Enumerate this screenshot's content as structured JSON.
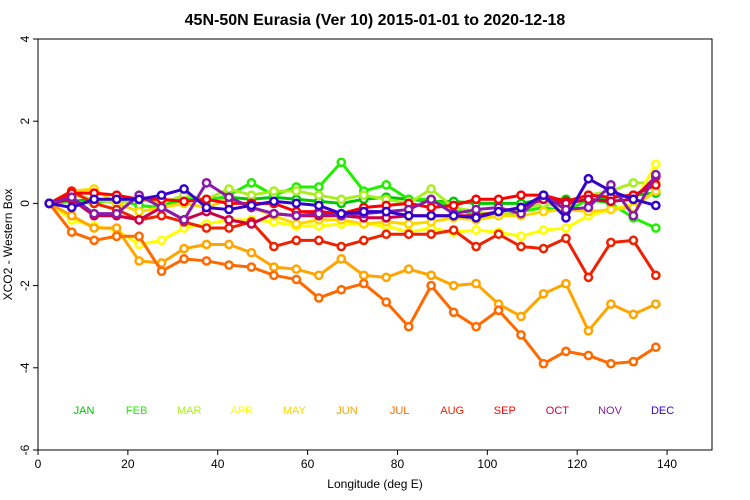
{
  "chart_data": {
    "type": "line",
    "title": "45N-50N Eurasia (Ver 10)   2015-01-01 to 2020-12-18",
    "xlabel": "Longitude (deg E)",
    "ylabel": "XCO2 - Western Box",
    "xlim": [
      0,
      150
    ],
    "ylim": [
      -6,
      4
    ],
    "x_ticks": [
      0,
      20,
      40,
      60,
      80,
      100,
      120,
      140
    ],
    "y_ticks": [
      -6,
      -4,
      -2,
      0,
      2,
      4
    ],
    "grid": false,
    "legend_position": "bottom-inside",
    "x": [
      2.5,
      7.5,
      12.5,
      17.5,
      22.5,
      27.5,
      32.5,
      37.5,
      42.5,
      47.5,
      52.5,
      57.5,
      62.5,
      67.5,
      72.5,
      77.5,
      82.5,
      87.5,
      92.5,
      97.5,
      102.5,
      107.5,
      112.5,
      117.5,
      122.5,
      127.5,
      132.5,
      137.5
    ],
    "series": [
      {
        "name": "JAN",
        "color": "#00c800",
        "values": [
          0.0,
          0.05,
          0.1,
          0.05,
          0.1,
          0.0,
          0.1,
          0.1,
          0.15,
          0.1,
          0.15,
          0.1,
          0.05,
          0.0,
          0.1,
          0.15,
          0.1,
          0.05,
          0.05,
          0.0,
          0.0,
          0.0,
          0.1,
          0.1,
          0.05,
          0.15,
          0.2,
          0.25
        ]
      },
      {
        "name": "FEB",
        "color": "#22ee00",
        "values": [
          0.0,
          0.05,
          0.0,
          0.1,
          -0.05,
          -0.1,
          0.1,
          0.05,
          0.2,
          0.5,
          0.2,
          0.4,
          0.4,
          1.0,
          0.3,
          0.45,
          0.1,
          0.1,
          -0.1,
          -0.3,
          -0.3,
          -0.2,
          -0.1,
          -0.2,
          0.1,
          0.0,
          -0.35,
          -0.6
        ]
      },
      {
        "name": "MAR",
        "color": "#aaee22",
        "values": [
          0.0,
          0.2,
          0.1,
          0.0,
          0.1,
          0.0,
          0.2,
          0.1,
          0.35,
          0.2,
          0.3,
          0.3,
          0.2,
          0.1,
          0.2,
          0.1,
          0.0,
          0.35,
          -0.1,
          -0.2,
          -0.3,
          -0.15,
          0.0,
          -0.1,
          0.2,
          0.3,
          0.5,
          0.5
        ]
      },
      {
        "name": "APR",
        "color": "#ffff00",
        "values": [
          0.0,
          -0.4,
          -0.55,
          -0.65,
          -1.0,
          -0.9,
          -0.6,
          -0.5,
          -0.4,
          -0.4,
          -0.45,
          -0.55,
          -0.55,
          -0.5,
          -0.5,
          -0.55,
          -0.7,
          -0.6,
          -0.7,
          -0.65,
          -0.7,
          -0.8,
          -0.65,
          -0.6,
          -0.3,
          -0.15,
          0.0,
          0.95
        ]
      },
      {
        "name": "MAY",
        "color": "#ffd700",
        "values": [
          0.0,
          0.3,
          0.35,
          0.0,
          -0.2,
          -0.1,
          0.0,
          -0.1,
          0.1,
          -0.1,
          -0.3,
          -0.5,
          -0.4,
          -0.4,
          -0.5,
          -0.45,
          -0.5,
          -0.45,
          -0.35,
          -0.4,
          -0.3,
          -0.3,
          -0.2,
          -0.15,
          -0.2,
          -0.15,
          -0.1,
          0.3
        ]
      },
      {
        "name": "JUN",
        "color": "#ffa500",
        "values": [
          0.0,
          -0.3,
          -0.6,
          -0.6,
          -1.4,
          -1.45,
          -1.1,
          -1.0,
          -1.0,
          -1.2,
          -1.55,
          -1.6,
          -1.75,
          -1.35,
          -1.75,
          -1.8,
          -1.6,
          -1.75,
          -2.0,
          -1.95,
          -2.45,
          -2.75,
          -2.2,
          -1.95,
          -3.1,
          -2.45,
          -2.7,
          -2.45
        ]
      },
      {
        "name": "JUL",
        "color": "#ff6a00",
        "values": [
          0.0,
          -0.7,
          -0.9,
          -0.8,
          -0.8,
          -1.65,
          -1.35,
          -1.4,
          -1.5,
          -1.55,
          -1.75,
          -1.85,
          -2.3,
          -2.1,
          -1.95,
          -2.4,
          -3.0,
          -2.0,
          -2.65,
          -3.0,
          -2.6,
          -3.2,
          -3.9,
          -3.6,
          -3.7,
          -3.9,
          -3.85,
          -3.5
        ]
      },
      {
        "name": "AUG",
        "color": "#ee2200",
        "values": [
          0.0,
          0.3,
          0.0,
          -0.15,
          -0.4,
          -0.3,
          -0.45,
          -0.6,
          -0.6,
          -0.45,
          -1.05,
          -0.9,
          -0.9,
          -1.05,
          -0.9,
          -0.75,
          -0.75,
          -0.75,
          -0.65,
          -1.05,
          -0.75,
          -1.05,
          -1.1,
          -0.85,
          -1.8,
          -0.95,
          -0.9,
          -1.75
        ]
      },
      {
        "name": "SEP",
        "color": "#ff0000",
        "values": [
          0.0,
          0.25,
          0.25,
          0.2,
          0.1,
          0.1,
          0.05,
          0.1,
          0.0,
          0.0,
          0.0,
          -0.2,
          -0.2,
          -0.25,
          -0.1,
          -0.05,
          0.0,
          -0.1,
          -0.05,
          0.1,
          0.1,
          0.2,
          0.2,
          0.05,
          0.2,
          0.15,
          0.2,
          0.45
        ]
      },
      {
        "name": "OCT",
        "color": "#cc0044",
        "values": [
          0.0,
          0.1,
          -0.3,
          -0.3,
          -0.4,
          -0.1,
          -0.4,
          -0.2,
          -0.4,
          -0.5,
          -0.25,
          -0.3,
          -0.3,
          -0.3,
          -0.35,
          -0.35,
          -0.3,
          -0.3,
          -0.3,
          -0.3,
          -0.2,
          -0.1,
          0.1,
          0.0,
          0.1,
          0.05,
          0.1,
          0.65
        ]
      },
      {
        "name": "NOV",
        "color": "#8a1aaa",
        "values": [
          0.0,
          0.15,
          -0.25,
          -0.25,
          0.2,
          -0.1,
          -0.4,
          0.5,
          0.15,
          -0.1,
          -0.25,
          -0.3,
          -0.25,
          -0.3,
          -0.25,
          -0.2,
          -0.15,
          0.1,
          -0.25,
          -0.15,
          -0.1,
          -0.25,
          0.2,
          -0.15,
          -0.1,
          0.45,
          -0.3,
          0.7
        ]
      },
      {
        "name": "DEC",
        "color": "#3300cc",
        "values": [
          0.0,
          -0.1,
          0.1,
          0.1,
          0.1,
          0.2,
          0.35,
          -0.1,
          -0.15,
          -0.05,
          0.05,
          0.0,
          -0.05,
          -0.25,
          -0.2,
          -0.2,
          -0.3,
          -0.3,
          -0.3,
          -0.35,
          -0.2,
          -0.1,
          0.2,
          -0.35,
          0.6,
          0.3,
          0.1,
          -0.05
        ]
      }
    ]
  }
}
